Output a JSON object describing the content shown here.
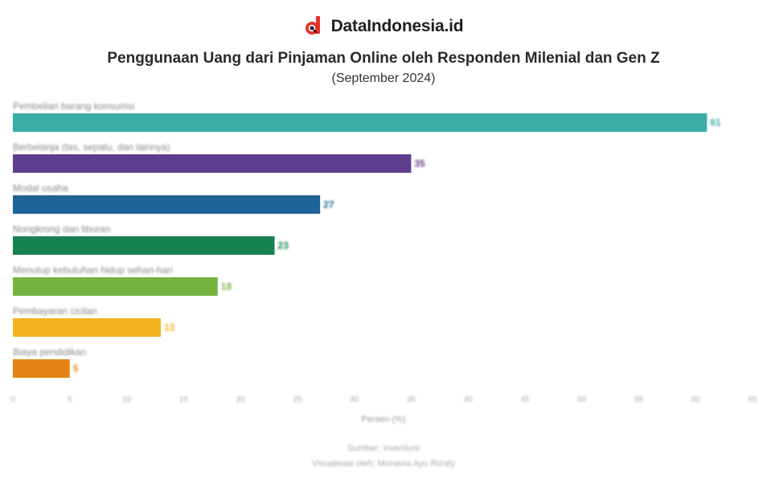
{
  "brand": {
    "name": "DataIndonesia.id",
    "logo_icon": "dataindonesia-logo-icon"
  },
  "title": "Penggunaan Uang dari Pinjaman Online oleh Responden Milenial dan Gen Z",
  "subtitle": "(September 2024)",
  "footer": {
    "source": "Sumber: Inventure",
    "visualization": "Visualisasi oleh: Monavia Ayu Rizaty"
  },
  "chart_data": {
    "type": "bar",
    "orientation": "horizontal",
    "categories": [
      "Pembelian barang konsumsi",
      "Berbelanja (tas, sepatu, dan lainnya)",
      "Modal usaha",
      "Nongkrong dan liburan",
      "Menutup kebutuhan hidup sehari-hari",
      "Pembayaran cicilan",
      "Biaya pendidikan"
    ],
    "values": [
      61,
      35,
      27,
      23,
      18,
      13,
      5
    ],
    "colors": [
      "#3aada6",
      "#5e3d8f",
      "#1f6496",
      "#17824f",
      "#75b341",
      "#f2b31f",
      "#e58412"
    ],
    "xlabel": "Persen (%)",
    "ylabel": "",
    "xlim": [
      0,
      65
    ],
    "xticks": [
      0,
      5,
      10,
      15,
      20,
      25,
      30,
      35,
      40,
      45,
      50,
      55,
      60,
      65
    ],
    "grid": false,
    "legend": "none"
  }
}
